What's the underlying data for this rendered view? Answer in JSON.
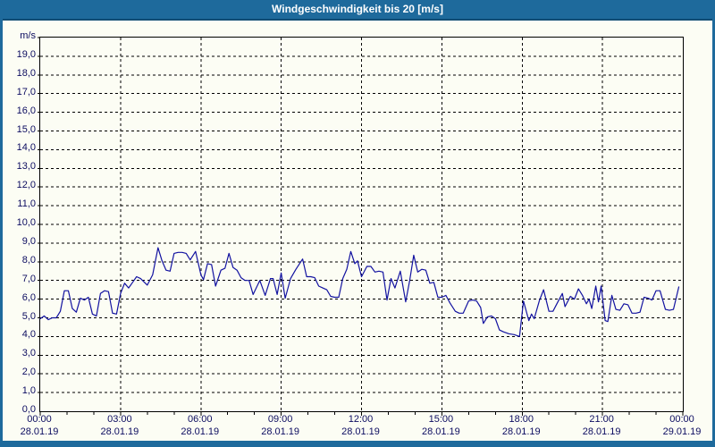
{
  "window": {
    "title": "Windgeschwindigkeit bis 20 [m/s]"
  },
  "colors": {
    "titlebar_bg": "#1e6a9c",
    "titlebar_text": "#ffffff",
    "window_border": "#1e6a9c",
    "background": "#fcfdf4",
    "grid": "#000000",
    "axis_text": "#0c0c60",
    "line": "#1212a0"
  },
  "chart_data": {
    "type": "line",
    "title": "Windgeschwindigkeit bis 20 [m/s]",
    "unit_label": "m/s",
    "ylabel": "m/s",
    "ylim": [
      0,
      20
    ],
    "y_tick_step": 1,
    "y_tick_labels": [
      "0,0",
      "1,0",
      "2,0",
      "3,0",
      "4,0",
      "5,0",
      "6,0",
      "7,0",
      "8,0",
      "9,0",
      "10,0",
      "11,0",
      "12,0",
      "13,0",
      "14,0",
      "15,0",
      "16,0",
      "17,0",
      "18,0",
      "19,0"
    ],
    "grid": true,
    "grid_style": "dashed",
    "x_range_hours": [
      0,
      24
    ],
    "x_minor_tick_hours": 1,
    "x_ticks": [
      {
        "hour": 0,
        "time": "00:00",
        "date": "28.01.19"
      },
      {
        "hour": 3,
        "time": "03:00",
        "date": "28.01.19"
      },
      {
        "hour": 6,
        "time": "06:00",
        "date": "28.01.19"
      },
      {
        "hour": 9,
        "time": "09:00",
        "date": "28.01.19"
      },
      {
        "hour": 12,
        "time": "12:00",
        "date": "28.01.19"
      },
      {
        "hour": 15,
        "time": "15:00",
        "date": "28.01.19"
      },
      {
        "hour": 18,
        "time": "18:00",
        "date": "28.01.19"
      },
      {
        "hour": 21,
        "time": "21:00",
        "date": "28.01.19"
      },
      {
        "hour": 24,
        "time": "00:00",
        "date": "29.01.19"
      }
    ],
    "series": [
      {
        "name": "Windgeschwindigkeit",
        "x_hours": [
          0,
          0.15,
          0.3,
          0.45,
          0.6,
          0.75,
          0.9,
          1.05,
          1.2,
          1.35,
          1.5,
          1.65,
          1.8,
          1.95,
          2.1,
          2.25,
          2.4,
          2.55,
          2.7,
          2.85,
          3.0,
          3.15,
          3.3,
          3.45,
          3.6,
          3.75,
          4.0,
          4.2,
          4.4,
          4.55,
          4.7,
          4.85,
          5.0,
          5.15,
          5.3,
          5.45,
          5.6,
          5.8,
          6.0,
          6.1,
          6.25,
          6.4,
          6.55,
          6.75,
          6.9,
          7.05,
          7.2,
          7.35,
          7.5,
          7.65,
          7.8,
          7.95,
          8.2,
          8.4,
          8.6,
          8.7,
          8.85,
          9.0,
          9.15,
          9.35,
          9.55,
          9.8,
          9.95,
          10.1,
          10.25,
          10.4,
          10.55,
          10.7,
          10.85,
          11.0,
          11.15,
          11.3,
          11.45,
          11.6,
          11.75,
          11.85,
          12.0,
          12.2,
          12.35,
          12.5,
          12.65,
          12.8,
          12.95,
          13.1,
          13.25,
          13.45,
          13.65,
          13.8,
          13.95,
          14.1,
          14.25,
          14.4,
          14.55,
          14.7,
          14.85,
          15.0,
          15.15,
          15.3,
          15.5,
          15.65,
          15.8,
          16.0,
          16.15,
          16.3,
          16.45,
          16.55,
          16.7,
          16.85,
          17.0,
          17.15,
          17.3,
          17.5,
          17.7,
          17.9,
          18.05,
          18.25,
          18.35,
          18.45,
          18.65,
          18.8,
          19.0,
          19.15,
          19.35,
          19.5,
          19.6,
          19.8,
          19.95,
          20.1,
          20.25,
          20.4,
          20.5,
          20.6,
          20.75,
          20.85,
          20.95,
          21.1,
          21.2,
          21.35,
          21.5,
          21.65,
          21.8,
          21.95,
          22.1,
          22.25,
          22.4,
          22.55,
          22.7,
          22.85,
          23.0,
          23.15,
          23.35,
          23.5,
          23.65,
          23.85
        ],
        "values": [
          4.95,
          5.1,
          4.9,
          5.0,
          5.0,
          5.35,
          6.45,
          6.45,
          5.5,
          5.3,
          6.05,
          5.95,
          6.1,
          5.2,
          5.1,
          6.3,
          6.45,
          6.4,
          5.25,
          5.2,
          6.3,
          6.85,
          6.6,
          6.9,
          7.2,
          7.1,
          6.75,
          7.3,
          8.75,
          8.05,
          7.55,
          7.5,
          8.45,
          8.5,
          8.5,
          8.45,
          8.1,
          8.55,
          7.3,
          7.05,
          7.9,
          7.85,
          6.7,
          7.55,
          7.65,
          8.45,
          7.7,
          7.55,
          7.15,
          7.0,
          7.0,
          6.25,
          7.0,
          6.2,
          7.1,
          7.1,
          6.25,
          7.4,
          6.05,
          7.1,
          7.6,
          8.15,
          7.2,
          7.2,
          7.15,
          6.7,
          6.6,
          6.5,
          6.15,
          6.1,
          6.1,
          7.1,
          7.6,
          8.55,
          7.9,
          8.05,
          7.2,
          7.75,
          7.75,
          7.45,
          7.5,
          7.45,
          5.95,
          7.1,
          6.6,
          7.5,
          5.85,
          7.0,
          8.35,
          7.45,
          7.6,
          7.55,
          6.85,
          6.9,
          6.1,
          6.1,
          6.2,
          5.8,
          5.35,
          5.25,
          5.25,
          5.9,
          5.95,
          5.9,
          5.55,
          4.7,
          5.05,
          5.1,
          4.95,
          4.35,
          4.25,
          4.15,
          4.1,
          4.0,
          5.9,
          4.85,
          5.2,
          4.95,
          5.95,
          6.5,
          5.35,
          5.35,
          5.9,
          6.3,
          5.6,
          6.15,
          6.0,
          6.55,
          6.2,
          5.75,
          6.0,
          5.5,
          6.7,
          5.85,
          6.7,
          4.85,
          4.8,
          6.2,
          5.45,
          5.4,
          5.75,
          5.7,
          5.25,
          5.25,
          5.3,
          6.1,
          6.05,
          5.95,
          6.45,
          6.45,
          5.45,
          5.4,
          5.45,
          6.65
        ]
      }
    ]
  }
}
